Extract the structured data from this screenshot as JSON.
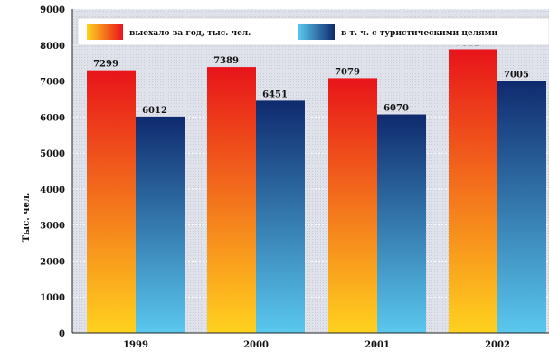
{
  "chart_data": {
    "type": "bar",
    "categories": [
      "1999",
      "2000",
      "2001",
      "2002"
    ],
    "series": [
      {
        "name": "выехало за год, тыс. чел.",
        "values": [
          7299,
          7389,
          7079,
          7882
        ],
        "colors": [
          "#e8141a",
          "#ffd21e"
        ]
      },
      {
        "name": "в т. ч. с туристическими целями",
        "values": [
          6012,
          6451,
          6070,
          7005
        ],
        "colors": [
          "#0f2a6e",
          "#5ac8ee"
        ]
      }
    ],
    "value_labels": [
      [
        "7299",
        "7389",
        "7079",
        "7882"
      ],
      [
        "6012",
        "6451",
        "6070",
        "7005"
      ]
    ],
    "yticks": [
      0,
      1000,
      2000,
      3000,
      4000,
      5000,
      6000,
      7000,
      8000,
      9000
    ],
    "ytick_labels": [
      "0",
      "1000",
      "2000",
      "3000",
      "4000",
      "5000",
      "6000",
      "7000",
      "8000",
      "9000"
    ],
    "ylim": [
      0,
      9000
    ],
    "ylabel": "Тыс. чел.",
    "xlabel": "",
    "title": "",
    "grid": true,
    "legend_position": "top",
    "background": "#d9dde6"
  }
}
